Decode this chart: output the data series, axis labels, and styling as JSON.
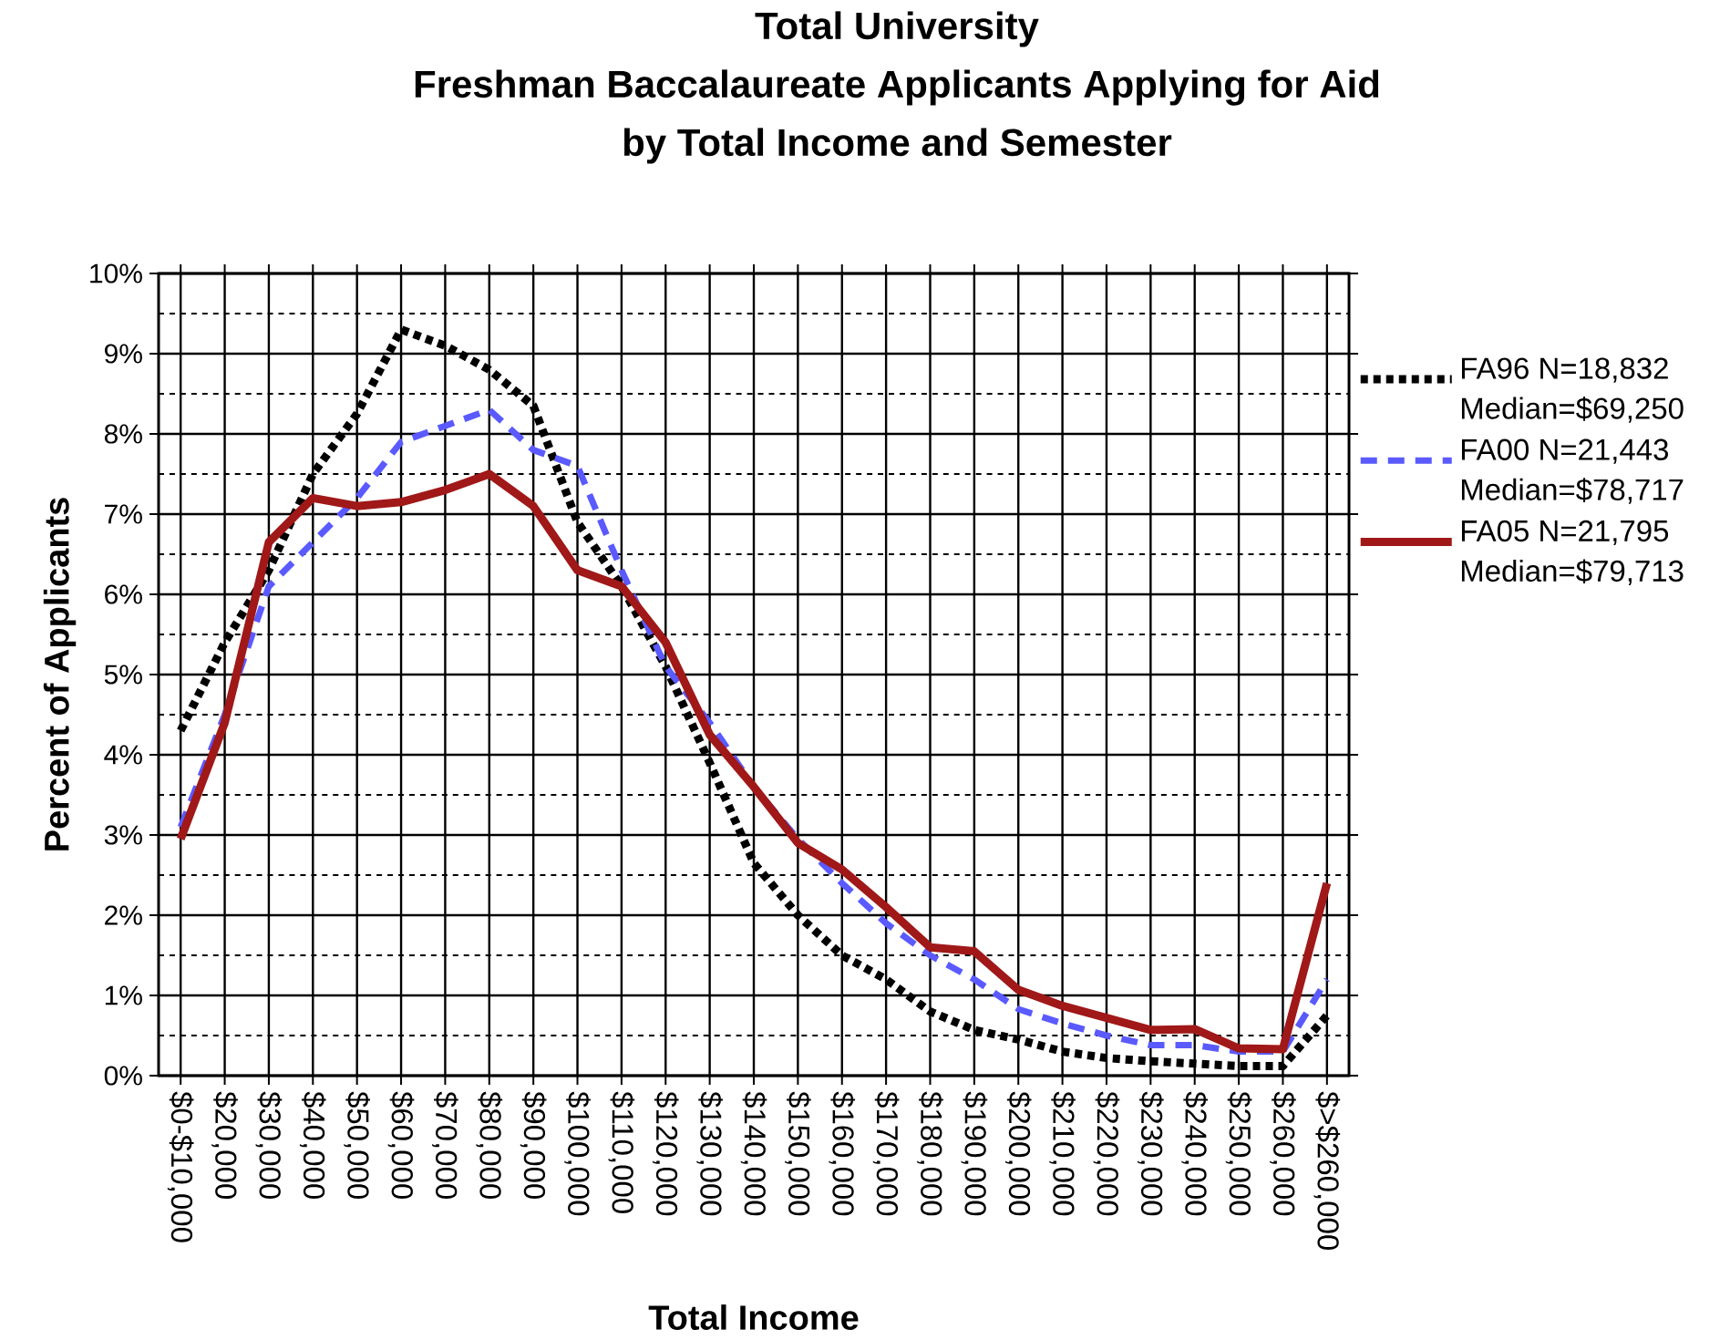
{
  "chart_data": {
    "type": "line",
    "title": "Total University\nFreshman Baccalaureate Applicants Applying for Aid\nby Total Income and Semester",
    "xlabel": "Total Income",
    "ylabel": "Percent of Applicants",
    "categories": [
      "$0-$10,000",
      "$20,000",
      "$30,000",
      "$40,000",
      "$50,000",
      "$60,000",
      "$70,000",
      "$80,000",
      "$90,000",
      "$100,000",
      "$110,000",
      "$120,000",
      "$130,000",
      "$140,000",
      "$150,000",
      "$160,000",
      "$170,000",
      "$180,000",
      "$190,000",
      "$200,000",
      "$210,000",
      "$220,000",
      "$230,000",
      "$240,000",
      "$250,000",
      "$260,000",
      "$>$260,000"
    ],
    "series": [
      {
        "name": "FA96   N=18,832 Median=$69,250",
        "color": "#000000",
        "line_style": "dotted",
        "values": [
          4.3,
          5.4,
          6.3,
          7.5,
          8.25,
          9.3,
          9.1,
          8.8,
          8.35,
          6.9,
          6.1,
          5.1,
          3.9,
          2.65,
          2.0,
          1.5,
          1.2,
          0.8,
          0.57,
          0.45,
          0.3,
          0.22,
          0.18,
          0.15,
          0.12,
          0.12,
          0.75
        ]
      },
      {
        "name": "FA00   N=21,443 Median=$78,717",
        "color": "#5a5aff",
        "line_style": "dashed",
        "values": [
          3.1,
          4.5,
          6.1,
          6.65,
          7.2,
          7.9,
          8.1,
          8.3,
          7.8,
          7.6,
          6.3,
          5.1,
          4.4,
          3.6,
          2.95,
          2.4,
          1.9,
          1.5,
          1.2,
          0.83,
          0.65,
          0.5,
          0.38,
          0.38,
          0.3,
          0.3,
          1.2
        ]
      },
      {
        "name": "FA05   N=21,795 Median=$79,713",
        "color": "#a01818",
        "line_style": "solid",
        "values": [
          2.95,
          4.4,
          6.65,
          7.2,
          7.1,
          7.15,
          7.3,
          7.5,
          7.1,
          6.3,
          6.1,
          5.4,
          4.25,
          3.6,
          2.9,
          2.57,
          2.1,
          1.6,
          1.55,
          1.07,
          0.87,
          0.72,
          0.57,
          0.58,
          0.34,
          0.33,
          2.4
        ]
      }
    ],
    "ylim": [
      0,
      10
    ],
    "yticks": [
      {
        "value": 0,
        "label": "0%"
      },
      {
        "value": 1,
        "label": "1%"
      },
      {
        "value": 2,
        "label": "2%"
      },
      {
        "value": 3,
        "label": "3%"
      },
      {
        "value": 4,
        "label": "4%"
      },
      {
        "value": 5,
        "label": "5%"
      },
      {
        "value": 6,
        "label": "6%"
      },
      {
        "value": 7,
        "label": "7%"
      },
      {
        "value": 8,
        "label": "8%"
      },
      {
        "value": 9,
        "label": "9%"
      },
      {
        "value": 10,
        "label": "10%"
      }
    ],
    "grid": true,
    "legend": "right",
    "marker": "none"
  }
}
